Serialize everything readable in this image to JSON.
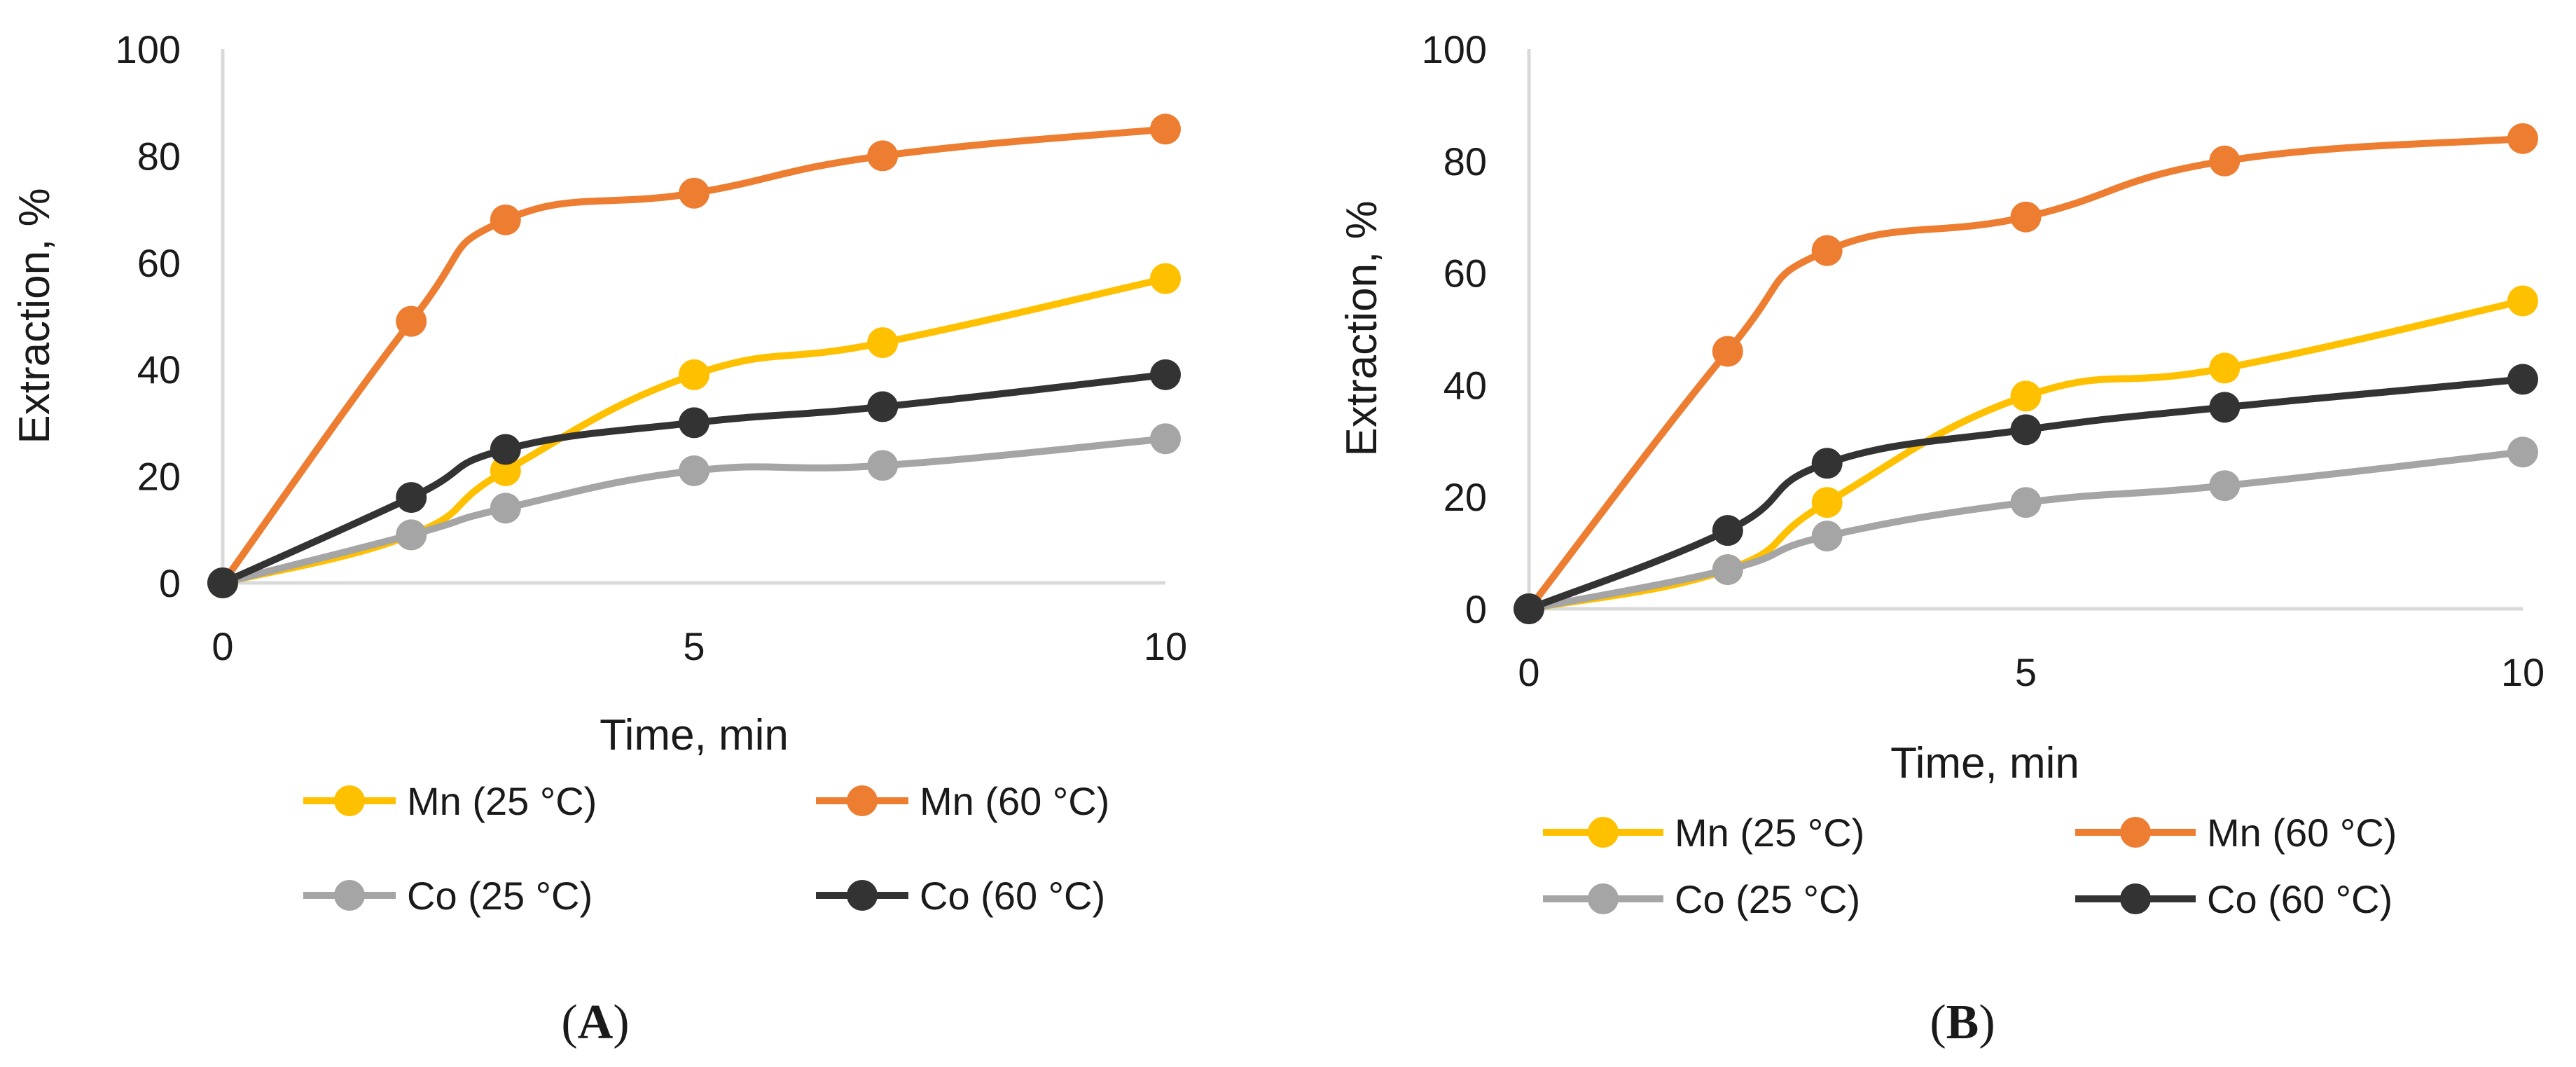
{
  "chart_data": [
    {
      "type": "line",
      "panel_label": {
        "open": "(",
        "letter": "A",
        "close": ")"
      },
      "xlabel": "Time, min",
      "ylabel": "Extraction, %",
      "xlim": [
        0,
        10
      ],
      "ylim": [
        0,
        100
      ],
      "xticks": [
        0,
        5,
        10
      ],
      "yticks": [
        0,
        20,
        40,
        60,
        80,
        100
      ],
      "x": [
        0,
        2,
        3,
        5,
        7,
        10
      ],
      "series": [
        {
          "name": "Mn (25 °C)",
          "color": "#FFC000",
          "values": [
            0,
            9,
            21,
            39,
            45,
            57
          ]
        },
        {
          "name": "Mn (60 °C)",
          "color": "#ED7D31",
          "values": [
            0,
            49,
            68,
            73,
            80,
            85
          ]
        },
        {
          "name": "Co (25 °C)",
          "color": "#A5A5A5",
          "values": [
            0,
            9,
            14,
            21,
            22,
            27
          ]
        },
        {
          "name": "Co (60 °C)",
          "color": "#333333",
          "values": [
            0,
            16,
            25,
            30,
            33,
            39
          ]
        }
      ]
    },
    {
      "type": "line",
      "panel_label": {
        "open": "(",
        "letter": "B",
        "close": ")"
      },
      "xlabel": "Time, min",
      "ylabel": "Extraction, %",
      "xlim": [
        0,
        10
      ],
      "ylim": [
        0,
        100
      ],
      "xticks": [
        0,
        5,
        10
      ],
      "yticks": [
        0,
        20,
        40,
        60,
        80,
        100
      ],
      "x": [
        0,
        2,
        3,
        5,
        7,
        10
      ],
      "series": [
        {
          "name": "Mn (25 °C)",
          "color": "#FFC000",
          "values": [
            0,
            7,
            19,
            38,
            43,
            55
          ]
        },
        {
          "name": "Mn (60 °C)",
          "color": "#ED7D31",
          "values": [
            0,
            46,
            64,
            70,
            80,
            84
          ]
        },
        {
          "name": "Co (25 °C)",
          "color": "#A5A5A5",
          "values": [
            0,
            7,
            13,
            19,
            22,
            28
          ]
        },
        {
          "name": "Co (60 °C)",
          "color": "#333333",
          "values": [
            0,
            14,
            26,
            32,
            36,
            41
          ]
        }
      ]
    }
  ]
}
